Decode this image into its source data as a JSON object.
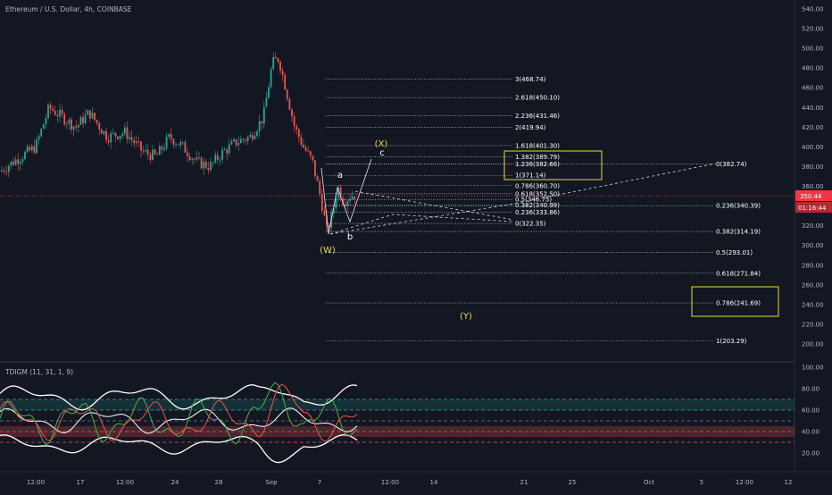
{
  "header": {
    "symbol": "Ethereum / U.S. Dollar, 4h, COINBASE"
  },
  "price_axis": {
    "ticks": [
      "540.00",
      "520.00",
      "500.00",
      "480.00",
      "460.00",
      "440.00",
      "420.00",
      "400.00",
      "380.00",
      "360.00",
      "340.00",
      "320.00",
      "300.00",
      "280.00",
      "260.00",
      "240.00",
      "220.00",
      "200.00"
    ],
    "current_price": "350.44",
    "countdown": "01:16:44",
    "current_color": "#f23645"
  },
  "oscillator": {
    "title": "TDIGM (11, 31, 1, 9)",
    "ticks": [
      "100.00",
      "80.00",
      "60.00",
      "40.00",
      "20.00"
    ],
    "levels": [
      70,
      60,
      50,
      40,
      30
    ]
  },
  "time_axis": {
    "labels": [
      "12:00",
      "17",
      "12:00",
      "24",
      "28",
      "Sep",
      "7",
      "12:00",
      "14",
      "21",
      "25",
      "Oct",
      "5",
      "12:00",
      "12"
    ]
  },
  "chart_data": {
    "type": "candlestick",
    "title": "Ethereum / U.S. Dollar, 4h, COINBASE",
    "ylim": [
      200,
      540
    ],
    "current_price": 350.44,
    "fib_extension_upper": [
      {
        "label": "3(468.74)",
        "value": 468.74
      },
      {
        "label": "2.618(450.10)",
        "value": 450.1
      },
      {
        "label": "2.236(431.46)",
        "value": 431.46
      },
      {
        "label": "2(419.94)",
        "value": 419.94
      },
      {
        "label": "1.618(401.30)",
        "value": 401.3
      },
      {
        "label": "1.382(389.79)",
        "value": 389.79
      },
      {
        "label": "1.236(382.66)",
        "value": 382.66
      },
      {
        "label": "1(371.14)",
        "value": 371.14
      },
      {
        "label": "0.786(360.70)",
        "value": 360.7
      },
      {
        "label": "0.618(352.50)",
        "value": 352.5
      },
      {
        "label": "0.5(346.75)",
        "value": 346.75
      },
      {
        "label": "0.382(340.99)",
        "value": 340.99
      },
      {
        "label": "0.236(333.86)",
        "value": 333.86
      },
      {
        "label": "0(322.35)",
        "value": 322.35
      }
    ],
    "fib_retracement_lower": [
      {
        "label": "0(382.74)",
        "value": 382.74
      },
      {
        "label": "0.236(340.39)",
        "value": 340.39
      },
      {
        "label": "0.382(314.19)",
        "value": 314.19
      },
      {
        "label": "0.5(293.01)",
        "value": 293.01
      },
      {
        "label": "0.618(271.84)",
        "value": 271.84
      },
      {
        "label": "0.786(241.69)",
        "value": 241.69
      },
      {
        "label": "1(203.29)",
        "value": 203.29
      }
    ],
    "wave_labels": [
      {
        "label": "(X)",
        "color": "#e6d84a"
      },
      {
        "label": "c",
        "color": "#ffffff"
      },
      {
        "label": "a",
        "color": "#ffffff"
      },
      {
        "label": "b",
        "color": "#ffffff"
      },
      {
        "label": "(W)",
        "color": "#e6d84a"
      },
      {
        "label": "(Y)",
        "color": "#e6d84a"
      }
    ],
    "up_color": "#26a69a",
    "down_color": "#ef5350",
    "highlight_box_color": "#e6d84a"
  }
}
